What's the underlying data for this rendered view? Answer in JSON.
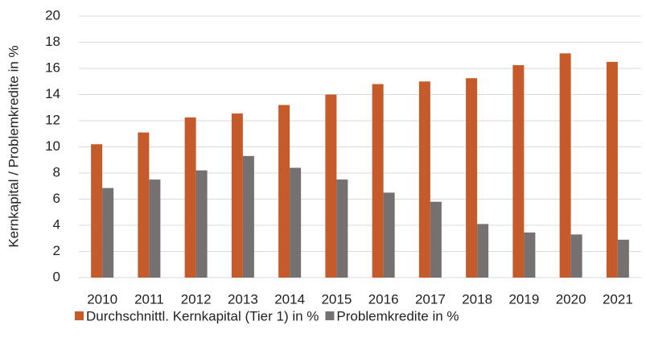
{
  "chart_data": {
    "type": "bar",
    "ylabel": "Kernkapital / Problemkredite in %",
    "categories": [
      "2010",
      "2011",
      "2012",
      "2013",
      "2014",
      "2015",
      "2016",
      "2017",
      "2018",
      "2019",
      "2020",
      "2021"
    ],
    "series": [
      {
        "name": "Durchschnittl. Kernkapital (Tier 1) in %",
        "color": "#c55a2b",
        "values": [
          10.2,
          11.1,
          12.25,
          12.55,
          13.2,
          14.0,
          14.8,
          15.0,
          15.25,
          16.25,
          17.15,
          16.5
        ]
      },
      {
        "name": "Problemkredite in %",
        "color": "#767171",
        "values": [
          6.85,
          7.5,
          8.2,
          9.3,
          8.4,
          7.5,
          6.5,
          5.8,
          4.1,
          3.45,
          3.3,
          2.9
        ]
      }
    ],
    "ylim": [
      0,
      20
    ],
    "yticks": [
      0,
      2,
      4,
      6,
      8,
      10,
      12,
      14,
      16,
      18,
      20
    ],
    "grid": true,
    "legend": "bottom"
  }
}
